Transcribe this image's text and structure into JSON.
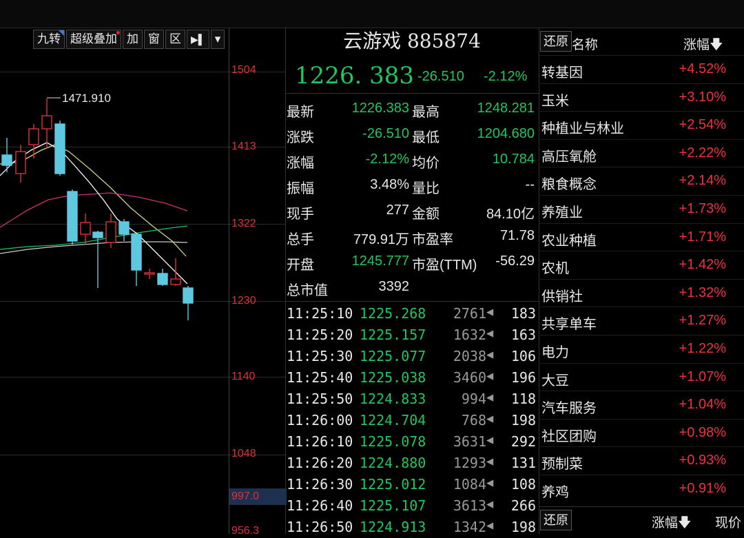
{
  "toolbar": {
    "jiuzhuan": "九转",
    "overlay": "超级叠加",
    "add": "加",
    "window": "窗",
    "zone": "区",
    "play": "▶▌",
    "dropdown": "▾"
  },
  "chart": {
    "ticks": [
      "1504",
      "1413",
      "1322",
      "1230",
      "1140",
      "1048",
      "956.3"
    ],
    "current_price_label": "997.0",
    "high_annotation": "1471.910",
    "colors": {
      "up": "#e0303a",
      "down": "#5ec8e0",
      "ma5": "#ffffff",
      "ma10": "#d8d08a",
      "ma20": "#d0307a",
      "ma60": "#22c55e"
    }
  },
  "quote": {
    "name": "云游戏 885874",
    "price": "1226. 383",
    "change": "-26.510",
    "pct": "-2.12%",
    "rows": [
      {
        "l1": "最新",
        "v1": "1226.383",
        "l2": "最高",
        "v2": "1248.281"
      },
      {
        "l1": "涨跌",
        "v1": "-26.510",
        "l2": "最低",
        "v2": "1204.680"
      },
      {
        "l1": "涨幅",
        "v1": "-2.12%",
        "l2": "均价",
        "v2": "10.784"
      },
      {
        "l1": "振幅",
        "v1": "3.48%",
        "l2": "量比",
        "v2": "--"
      },
      {
        "l1": "现手",
        "v1": "277",
        "l2": "金额",
        "v2": "84.10亿"
      },
      {
        "l1": "总手",
        "v1": "779.91万",
        "l2": "市盈率",
        "v2": "71.78"
      },
      {
        "l1": "开盘",
        "v1": "1245.777",
        "l2": "市盈(TTM)",
        "v2": "-56.29"
      },
      {
        "l1": "总市值",
        "v1": "3392",
        "l2": "",
        "v2": ""
      }
    ],
    "ticks": [
      {
        "time": "11:25:10",
        "price": "1225.268",
        "vol": "2761",
        "arrow": "◀",
        "n": "183"
      },
      {
        "time": "11:25:20",
        "price": "1225.157",
        "vol": "1632",
        "arrow": "◀",
        "n": "163"
      },
      {
        "time": "11:25:30",
        "price": "1225.077",
        "vol": "2038",
        "arrow": "◀",
        "n": "106"
      },
      {
        "time": "11:25:40",
        "price": "1225.038",
        "vol": "3460",
        "arrow": "◀",
        "n": "196"
      },
      {
        "time": "11:25:50",
        "price": "1224.833",
        "vol": "994",
        "arrow": "◀",
        "n": "118"
      },
      {
        "time": "11:26:00",
        "price": "1224.704",
        "vol": "768",
        "arrow": "◀",
        "n": "198"
      },
      {
        "time": "11:26:10",
        "price": "1225.078",
        "vol": "3631",
        "arrow": "◀",
        "n": "292"
      },
      {
        "time": "11:26:20",
        "price": "1224.880",
        "vol": "1293",
        "arrow": "◀",
        "n": "131"
      },
      {
        "time": "11:26:30",
        "price": "1225.012",
        "vol": "1084",
        "arrow": "◀",
        "n": "108"
      },
      {
        "time": "11:26:40",
        "price": "1225.107",
        "vol": "3613",
        "arrow": "◀",
        "n": "266"
      },
      {
        "time": "11:26:50",
        "price": "1224.913",
        "vol": "1342",
        "arrow": "◀",
        "n": "198"
      }
    ]
  },
  "sector": {
    "restore": "还原",
    "name_header": "名称",
    "change_header": "涨幅",
    "sort_icon": "🡇",
    "rows": [
      {
        "name": "转基因",
        "pct": "+4.52%"
      },
      {
        "name": "玉米",
        "pct": "+3.10%"
      },
      {
        "name": "种植业与林业",
        "pct": "+2.54%"
      },
      {
        "name": "高压氧舱",
        "pct": "+2.22%"
      },
      {
        "name": "粮食概念",
        "pct": "+2.14%"
      },
      {
        "name": "养殖业",
        "pct": "+1.73%"
      },
      {
        "name": "农业种植",
        "pct": "+1.71%"
      },
      {
        "name": "农机",
        "pct": "+1.42%"
      },
      {
        "name": "供销社",
        "pct": "+1.32%"
      },
      {
        "name": "共享单车",
        "pct": "+1.27%"
      },
      {
        "name": "电力",
        "pct": "+1.22%"
      },
      {
        "name": "大豆",
        "pct": "+1.07%"
      },
      {
        "name": "汽车服务",
        "pct": "+1.04%"
      },
      {
        "name": "社区团购",
        "pct": "+0.98%"
      },
      {
        "name": "预制菜",
        "pct": "+0.93%"
      },
      {
        "name": "养鸡",
        "pct": "+0.91%"
      }
    ],
    "footer_restore": "还原",
    "footer_change": "涨幅",
    "footer_price": "现价"
  }
}
